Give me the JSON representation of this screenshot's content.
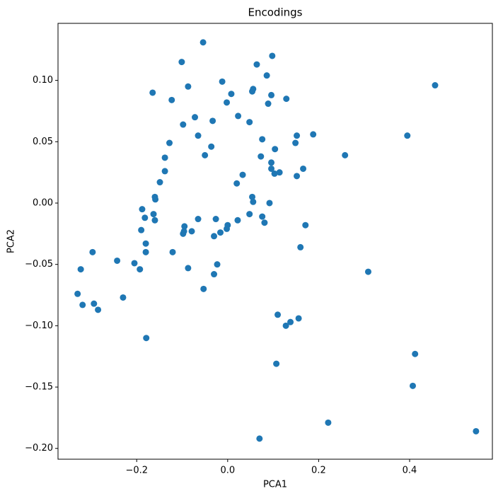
{
  "chart_data": {
    "type": "scatter",
    "title": "Encodings",
    "x_label": "PCA1",
    "y_label": "PCA2",
    "color": "#1f77b4",
    "x": [
      -0.054,
      -0.101,
      0.098,
      0.064,
      0.086,
      -0.012,
      -0.087,
      0.456,
      0.056,
      0.054,
      -0.165,
      0.008,
      0.096,
      0.129,
      -0.123,
      -0.002,
      0.089,
      -0.072,
      0.023,
      -0.033,
      0.048,
      -0.098,
      -0.065,
      0.152,
      0.188,
      0.395,
      0.076,
      -0.128,
      0.149,
      -0.036,
      0.104,
      -0.05,
      0.073,
      0.258,
      -0.138,
      0.096,
      0.166,
      0.096,
      0.114,
      0.103,
      -0.138,
      0.033,
      0.152,
      -0.149,
      0.02,
      -0.16,
      0.054,
      -0.159,
      0.056,
      0.092,
      -0.188,
      -0.163,
      0.048,
      -0.182,
      0.076,
      -0.16,
      -0.065,
      -0.026,
      0.022,
      0.081,
      0.171,
      0.0,
      -0.095,
      -0.002,
      -0.19,
      -0.079,
      -0.096,
      -0.016,
      -0.098,
      -0.03,
      -0.18,
      0.16,
      -0.297,
      -0.18,
      -0.121,
      -0.243,
      -0.205,
      -0.023,
      -0.323,
      -0.193,
      -0.087,
      0.309,
      -0.03,
      -0.053,
      -0.33,
      -0.23,
      -0.319,
      -0.294,
      -0.285,
      0.11,
      0.156,
      0.138,
      0.128,
      -0.179,
      0.412,
      0.107,
      0.407,
      0.221,
      0.546,
      0.07
    ],
    "values": [
      0.131,
      0.115,
      0.12,
      0.113,
      0.104,
      0.099,
      0.095,
      0.096,
      0.093,
      0.091,
      0.09,
      0.089,
      0.088,
      0.085,
      0.084,
      0.082,
      0.081,
      0.07,
      0.071,
      0.067,
      0.066,
      0.064,
      0.055,
      0.055,
      0.056,
      0.055,
      0.052,
      0.049,
      0.049,
      0.046,
      0.044,
      0.039,
      0.038,
      0.039,
      0.037,
      0.033,
      0.028,
      0.028,
      0.025,
      0.024,
      0.026,
      0.023,
      0.022,
      0.017,
      0.016,
      0.005,
      0.005,
      0.003,
      0.001,
      0.0,
      -0.005,
      -0.009,
      -0.009,
      -0.012,
      -0.011,
      -0.014,
      -0.013,
      -0.013,
      -0.014,
      -0.016,
      -0.018,
      -0.018,
      -0.019,
      -0.021,
      -0.022,
      -0.023,
      -0.023,
      -0.024,
      -0.025,
      -0.027,
      -0.033,
      -0.036,
      -0.04,
      -0.04,
      -0.04,
      -0.047,
      -0.049,
      -0.05,
      -0.054,
      -0.054,
      -0.053,
      -0.056,
      -0.058,
      -0.07,
      -0.074,
      -0.077,
      -0.083,
      -0.082,
      -0.087,
      -0.091,
      -0.094,
      -0.097,
      -0.1,
      -0.11,
      -0.123,
      -0.131,
      -0.149,
      -0.179,
      -0.186,
      -0.192
    ],
    "xlim": [
      -0.373,
      0.582
    ],
    "ylim": [
      -0.2088,
      0.1465
    ],
    "xticks": [
      {
        "value": -0.2,
        "label": "−0.2"
      },
      {
        "value": 0.0,
        "label": "0.0"
      },
      {
        "value": 0.2,
        "label": "0.2"
      },
      {
        "value": 0.4,
        "label": "0.4"
      }
    ],
    "yticks": [
      {
        "value": -0.2,
        "label": "−0.20"
      },
      {
        "value": -0.15,
        "label": "−0.15"
      },
      {
        "value": -0.1,
        "label": "−0.10"
      },
      {
        "value": -0.05,
        "label": "−0.05"
      },
      {
        "value": 0.0,
        "label": "0.00"
      },
      {
        "value": 0.05,
        "label": "0.05"
      },
      {
        "value": 0.1,
        "label": "0.10"
      }
    ],
    "grid": false
  }
}
